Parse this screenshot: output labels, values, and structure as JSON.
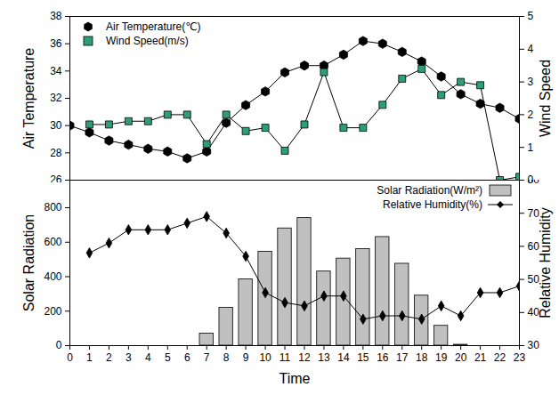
{
  "chart_data": [
    {
      "type": "line",
      "ylabel": "Air Temperature",
      "y2label": "Wind Speed",
      "x": [
        0,
        1,
        2,
        3,
        4,
        5,
        6,
        7,
        8,
        9,
        10,
        11,
        12,
        13,
        14,
        15,
        16,
        17,
        18,
        19,
        20,
        21,
        22,
        23
      ],
      "xlim": [
        0,
        23
      ],
      "ylim": [
        26,
        38
      ],
      "yticks": [
        26,
        28,
        30,
        32,
        34,
        36,
        38
      ],
      "y2lim": [
        0,
        5
      ],
      "y2ticks": [
        0,
        1,
        2,
        3,
        4,
        5
      ],
      "tick_labels": "y",
      "legend": "upper left",
      "series": [
        {
          "name": "Air Temperature(℃)",
          "type": "line",
          "color": "#000000",
          "marker": "hexagon",
          "values": [
            30.0,
            29.5,
            28.9,
            28.6,
            28.3,
            28.1,
            27.6,
            28.1,
            30.2,
            31.5,
            32.5,
            33.9,
            34.4,
            34.4,
            35.2,
            36.2,
            36.0,
            35.4,
            34.7,
            33.6,
            32.3,
            31.6,
            31.3,
            30.5
          ]
        },
        {
          "name": "Wind Speed(m/s)",
          "type": "line",
          "color": "#2e9e78",
          "marker": "square",
          "axis": "y2",
          "values": [
            null,
            1.7,
            1.7,
            1.8,
            1.8,
            2.0,
            2.0,
            1.1,
            2.0,
            1.5,
            1.6,
            0.9,
            1.7,
            3.3,
            1.6,
            1.6,
            2.3,
            3.1,
            3.4,
            2.6,
            3.0,
            2.9,
            0.0,
            0.1
          ]
        }
      ]
    },
    {
      "type": "bar",
      "xlabel": "Time",
      "ylabel": "Solar Radiation",
      "y2label": "Relative Humidity",
      "x": [
        0,
        1,
        2,
        3,
        4,
        5,
        6,
        7,
        8,
        9,
        10,
        11,
        12,
        13,
        14,
        15,
        16,
        17,
        18,
        19,
        20,
        21,
        22,
        23
      ],
      "xlim": [
        0,
        23
      ],
      "xticks": [
        0,
        1,
        2,
        3,
        4,
        5,
        6,
        7,
        8,
        9,
        10,
        11,
        12,
        13,
        14,
        15,
        16,
        17,
        18,
        19,
        20,
        21,
        22,
        23
      ],
      "ylim": [
        0,
        960
      ],
      "yticks": [
        0,
        200,
        400,
        600,
        800
      ],
      "y2lim": [
        30,
        80
      ],
      "y2ticks": [
        30,
        40,
        50,
        60,
        70,
        80
      ],
      "legend": "upper right",
      "series": [
        {
          "name": "Solar Radiation(W/m²)",
          "type": "bar",
          "color": "#c0c0c0",
          "values": [
            0,
            0,
            0,
            0,
            0,
            0,
            0,
            70,
            220,
            385,
            545,
            680,
            740,
            430,
            505,
            560,
            630,
            475,
            290,
            115,
            5,
            0,
            0,
            0
          ]
        },
        {
          "name": "Relative Humidity(%)",
          "type": "line",
          "color": "#000000",
          "marker": "diamond",
          "axis": "y2",
          "values": [
            null,
            58,
            61,
            65,
            65,
            65,
            67,
            69,
            64,
            57,
            46,
            43,
            42,
            45,
            45,
            38,
            39,
            39,
            38,
            42,
            39,
            46,
            46,
            48
          ]
        }
      ]
    }
  ]
}
